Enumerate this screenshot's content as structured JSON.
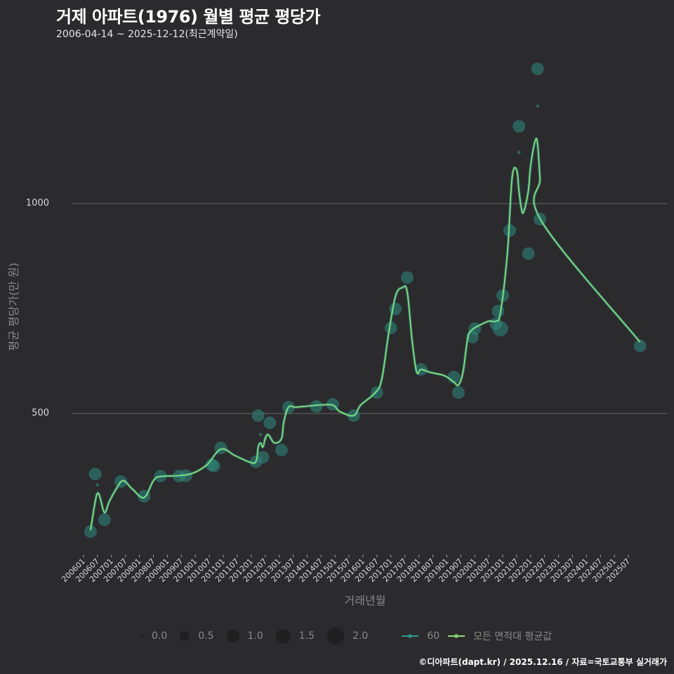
{
  "header": {
    "title": "거제 아파트(1976) 월별 평균 평당가",
    "subtitle": "2006-04-14 ~ 2025-12-12(최근계약일)"
  },
  "axes": {
    "ylabel": "평균 평당가(만 원)",
    "xlabel": "거래년월",
    "yticks": [
      "500",
      "1000"
    ]
  },
  "legend": {
    "size_title": "",
    "sizes": [
      "0.0",
      "0.5",
      "1.0",
      "1.5",
      "2.0"
    ],
    "series": [
      {
        "label": "60",
        "color": "#2e9b8f"
      },
      {
        "label": "모든 면적대 평균값",
        "color": "#8fe37a"
      }
    ]
  },
  "caption": "©디아파트(dapt.kr) / 2025.12.16 / 자료=국토교통부 실거래가",
  "colors": {
    "background": "#2b2a2c",
    "grid": "#5a5a5a",
    "points": "#2e8b80",
    "avg_line": "#8fe37a",
    "area_line": "#2e9b8f"
  },
  "chart_data": {
    "type": "scatter",
    "title": "거제 아파트(1976) 월별 평균 평당가",
    "subtitle": "2006-04-14 ~ 2025-12-12(최근계약일)",
    "xlabel": "거래년월",
    "ylabel": "평균 평당가(만 원)",
    "ylim": [
      140,
      1350
    ],
    "yticks": [
      500,
      1000
    ],
    "grid": true,
    "legend_position": "bottom",
    "x_ticks": [
      "200601",
      "200607",
      "200701",
      "200707",
      "200801",
      "200807",
      "200901",
      "200907",
      "201001",
      "201007",
      "201101",
      "201107",
      "201201",
      "201207",
      "201301",
      "201307",
      "201401",
      "201407",
      "201501",
      "201507",
      "201601",
      "201607",
      "201701",
      "201707",
      "201801",
      "201807",
      "201901",
      "201907",
      "202001",
      "202007",
      "202101",
      "202107",
      "202201",
      "202207",
      "202301",
      "202307",
      "202401",
      "202407",
      "202501",
      "202507"
    ],
    "series": [
      {
        "name": "60",
        "kind": "points",
        "points": [
          {
            "x": "200604",
            "y": 219,
            "size": 1.0
          },
          {
            "x": "200606",
            "y": 356,
            "size": 1.0
          },
          {
            "x": "200607",
            "y": 330,
            "size": 0.1
          },
          {
            "x": "200610",
            "y": 247,
            "size": 1.0
          },
          {
            "x": "200617",
            "y": 0,
            "size": 0
          },
          {
            "x": "200705",
            "y": 338,
            "size": 1.0
          },
          {
            "x": "200803",
            "y": 303,
            "size": 1.0
          },
          {
            "x": "200810",
            "y": 351,
            "size": 1.0
          },
          {
            "x": "200906",
            "y": 351,
            "size": 1.0
          },
          {
            "x": "200909",
            "y": 352,
            "size": 1.0
          },
          {
            "x": "201008",
            "y": 378,
            "size": 1.0
          },
          {
            "x": "201009",
            "y": 375,
            "size": 1.0
          },
          {
            "x": "201012",
            "y": 418,
            "size": 1.0
          },
          {
            "x": "201203",
            "y": 385,
            "size": 1.0
          },
          {
            "x": "201204",
            "y": 495,
            "size": 1.0
          },
          {
            "x": "201205",
            "y": 450,
            "size": 0.1
          },
          {
            "x": "201206",
            "y": 396,
            "size": 1.0
          },
          {
            "x": "201207",
            "y": 440,
            "size": 0.1
          },
          {
            "x": "201209",
            "y": 478,
            "size": 1.0
          },
          {
            "x": "201302",
            "y": 413,
            "size": 1.0
          },
          {
            "x": "201305",
            "y": 515,
            "size": 1.0
          },
          {
            "x": "201405",
            "y": 517,
            "size": 1.0
          },
          {
            "x": "201412",
            "y": 522,
            "size": 1.0
          },
          {
            "x": "201509",
            "y": 495,
            "size": 1.0
          },
          {
            "x": "201607",
            "y": 550,
            "size": 1.0
          },
          {
            "x": "201701",
            "y": 704,
            "size": 1.0
          },
          {
            "x": "201703",
            "y": 749,
            "size": 1.0
          },
          {
            "x": "201708",
            "y": 824,
            "size": 1.0
          },
          {
            "x": "201802",
            "y": 605,
            "size": 1.0
          },
          {
            "x": "201904",
            "y": 587,
            "size": 1.0
          },
          {
            "x": "201906",
            "y": 550,
            "size": 1.0
          },
          {
            "x": "201912",
            "y": 682,
            "size": 1.0
          },
          {
            "x": "202001",
            "y": 702,
            "size": 1.0
          },
          {
            "x": "202010",
            "y": 714,
            "size": 1.0
          },
          {
            "x": "202011",
            "y": 744,
            "size": 1.0
          },
          {
            "x": "202012",
            "y": 702,
            "size": 1.5
          },
          {
            "x": "202101",
            "y": 781,
            "size": 1.0
          },
          {
            "x": "202104",
            "y": 936,
            "size": 1.0
          },
          {
            "x": "202108",
            "y": 1184,
            "size": 1.0
          },
          {
            "x": "202108",
            "y": 1122,
            "size": 0.1
          },
          {
            "x": "202112",
            "y": 881,
            "size": 1.0
          },
          {
            "x": "202204",
            "y": 1321,
            "size": 1.0
          },
          {
            "x": "202204",
            "y": 1232,
            "size": 0.1
          },
          {
            "x": "202205",
            "y": 963,
            "size": 1.0
          },
          {
            "x": "202512",
            "y": 661,
            "size": 1.0
          }
        ]
      },
      {
        "name": "모든 면적대 평균값",
        "kind": "line",
        "x": [
          "200604",
          "200606",
          "200607",
          "200608",
          "200610",
          "200612",
          "200703",
          "200706",
          "200710",
          "200803",
          "200807",
          "200810",
          "200906",
          "200912",
          "201006",
          "201012",
          "201106",
          "201112",
          "201203",
          "201204",
          "201205",
          "201206",
          "201207",
          "201208",
          "201209",
          "201211",
          "201302",
          "201303",
          "201305",
          "201308",
          "201312",
          "201406",
          "201412",
          "201503",
          "201509",
          "201512",
          "201606",
          "201609",
          "201612",
          "201703",
          "201706",
          "201708",
          "201710",
          "201712",
          "201802",
          "201806",
          "201812",
          "201904",
          "201906",
          "201908",
          "201910",
          "201912",
          "202003",
          "202007",
          "202010",
          "202012",
          "202103",
          "202105",
          "202107",
          "202108",
          "202109",
          "202110",
          "202112",
          "202201",
          "202203",
          "202204",
          "202205",
          "202206",
          "202512"
        ],
        "y": [
          222,
          290,
          310,
          302,
          264,
          290,
          320,
          340,
          320,
          300,
          340,
          350,
          352,
          358,
          378,
          415,
          400,
          385,
          385,
          420,
          430,
          420,
          440,
          450,
          445,
          430,
          440,
          480,
          515,
          515,
          517,
          520,
          520,
          505,
          495,
          520,
          548,
          580,
          690,
          780,
          800,
          790,
          680,
          600,
          605,
          598,
          590,
          575,
          568,
          600,
          680,
          700,
          710,
          720,
          720,
          740,
          880,
          1060,
          1080,
          1030,
          990,
          980,
          1030,
          1090,
          1150,
          1140,
          1060,
          955,
          670
        ]
      }
    ]
  }
}
